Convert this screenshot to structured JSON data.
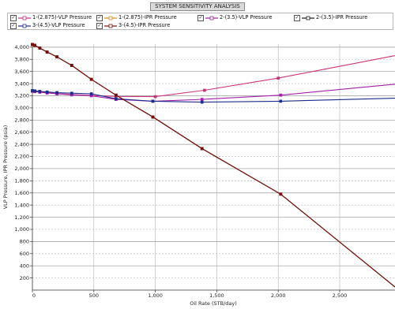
{
  "chart_data": {
    "type": "line",
    "title": "SYSTEM SENSITIVITY ANALYSIS",
    "xlabel": "Oil Rate  (STB/day)",
    "ylabel": "VLP Pressure, IPR Pressure  (psia)",
    "xlim": [
      0,
      2950
    ],
    "ylim": [
      0,
      4050
    ],
    "xticks": [
      0,
      500,
      1000,
      1500,
      2000,
      2500
    ],
    "xtick_labels": [
      "0",
      "500",
      "1,000",
      "1,500",
      "2,000",
      "2,500"
    ],
    "yticks": [
      200,
      400,
      600,
      800,
      1000,
      1200,
      1400,
      1600,
      1800,
      2000,
      2200,
      2400,
      2600,
      2800,
      3000,
      3200,
      3400,
      3600,
      3800,
      4000
    ],
    "ytick_labels": [
      "200",
      "400",
      "600",
      "800",
      "1,000",
      "1,200",
      "1,400",
      "1,600",
      "1,800",
      "2,000",
      "2,200",
      "2,400",
      "2,600",
      "2,800",
      "3,000",
      "3,200",
      "3,400",
      "3,600",
      "3,800",
      "4,000"
    ],
    "grid": true,
    "legend_position": "top",
    "series": [
      {
        "name": "1-(2.875)-VLP Pressure",
        "color": "#cc3377",
        "marker": "square",
        "points": [
          [
            0,
            3275
          ],
          [
            20,
            3270
          ],
          [
            60,
            3262
          ],
          [
            120,
            3250
          ],
          [
            200,
            3238
          ],
          [
            320,
            3220
          ],
          [
            480,
            3205
          ],
          [
            680,
            3190
          ],
          [
            1000,
            3185
          ],
          [
            1400,
            3290
          ],
          [
            2000,
            3490
          ],
          [
            2950,
            3860
          ]
        ]
      },
      {
        "name": "1-(2.875)-IPR Pressure",
        "color": "#e08a1e",
        "marker": "square",
        "points": [
          [
            0,
            4045
          ],
          [
            20,
            4030
          ],
          [
            60,
            3985
          ],
          [
            120,
            3920
          ],
          [
            200,
            3840
          ],
          [
            320,
            3700
          ],
          [
            480,
            3470
          ],
          [
            680,
            3210
          ],
          [
            980,
            2850
          ],
          [
            1380,
            2330
          ],
          [
            2020,
            1580
          ],
          [
            2950,
            50
          ]
        ]
      },
      {
        "name": "2-(3.5)-VLP Pressure",
        "color": "#a020a8",
        "marker": "square",
        "points": [
          [
            0,
            3275
          ],
          [
            20,
            3268
          ],
          [
            60,
            3258
          ],
          [
            120,
            3245
          ],
          [
            200,
            3232
          ],
          [
            320,
            3215
          ],
          [
            480,
            3200
          ],
          [
            680,
            3140
          ],
          [
            980,
            3110
          ],
          [
            1380,
            3140
          ],
          [
            2020,
            3210
          ],
          [
            2950,
            3390
          ]
        ]
      },
      {
        "name": "2-(3.5)-IPR Pressure",
        "color": "#1a1a1a",
        "marker": "square",
        "points": [
          [
            0,
            4045
          ],
          [
            20,
            4030
          ],
          [
            60,
            3985
          ],
          [
            120,
            3920
          ],
          [
            200,
            3840
          ],
          [
            320,
            3700
          ],
          [
            480,
            3470
          ],
          [
            680,
            3210
          ],
          [
            980,
            2850
          ],
          [
            1380,
            2330
          ],
          [
            2020,
            1580
          ],
          [
            2950,
            50
          ]
        ]
      },
      {
        "name": "3-(4.5)-VLP Pressure",
        "color": "#1c2c8c",
        "marker": "square",
        "points": [
          [
            0,
            3285
          ],
          [
            20,
            3280
          ],
          [
            60,
            3272
          ],
          [
            120,
            3262
          ],
          [
            200,
            3252
          ],
          [
            320,
            3242
          ],
          [
            480,
            3232
          ],
          [
            680,
            3150
          ],
          [
            980,
            3110
          ],
          [
            1380,
            3095
          ],
          [
            2020,
            3110
          ],
          [
            2950,
            3160
          ]
        ]
      },
      {
        "name": "3-(4.5)-IPR Pressure",
        "color": "#7a0f0f",
        "marker": "square",
        "points": [
          [
            0,
            4045
          ],
          [
            20,
            4030
          ],
          [
            60,
            3985
          ],
          [
            120,
            3920
          ],
          [
            200,
            3840
          ],
          [
            320,
            3700
          ],
          [
            480,
            3470
          ],
          [
            680,
            3210
          ],
          [
            980,
            2850
          ],
          [
            1380,
            2330
          ],
          [
            2020,
            1580
          ],
          [
            2950,
            50
          ]
        ]
      }
    ]
  }
}
